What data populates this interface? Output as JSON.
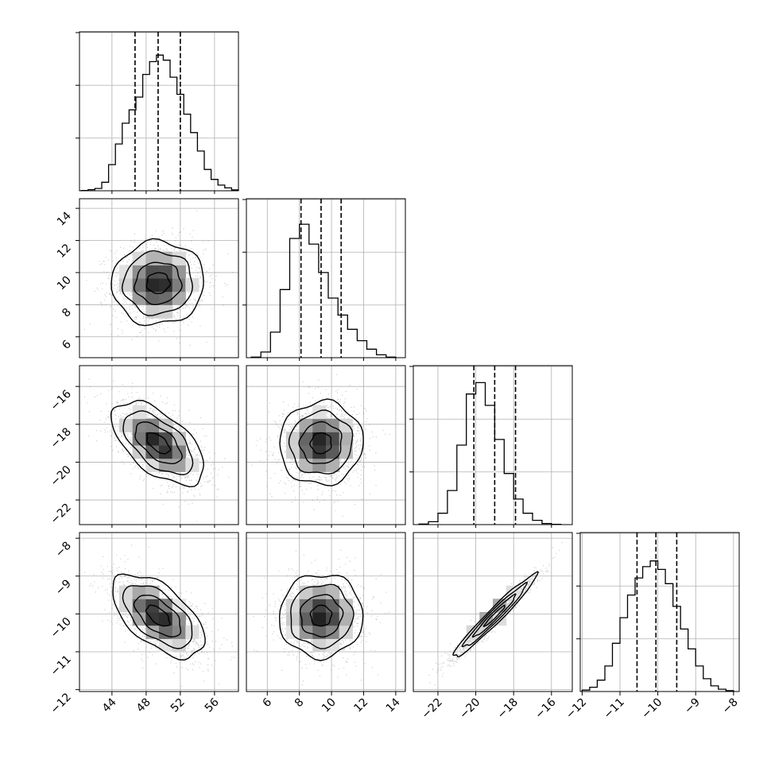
{
  "chart_data": {
    "type": "corner",
    "description_free": true,
    "n_params": 4,
    "params": [
      {
        "index": 0,
        "range": [
          40.2,
          58.8
        ],
        "ticks": [
          44,
          48,
          52,
          56
        ],
        "tick_labels": [
          "44",
          "48",
          "52",
          "56"
        ],
        "quantiles": [
          46.7,
          49.4,
          52.0
        ],
        "hist": {
          "bins": [
            40.4,
            41.2,
            42.0,
            42.8,
            43.6,
            44.4,
            45.2,
            46.0,
            46.8,
            47.6,
            48.4,
            49.2,
            50.0,
            50.8,
            51.6,
            52.4,
            53.2,
            54.0,
            54.8,
            55.6,
            56.4,
            57.2,
            58.0,
            58.8
          ],
          "counts": [
            1,
            4,
            8,
            30,
            92,
            165,
            238,
            285,
            330,
            410,
            455,
            478,
            460,
            400,
            340,
            270,
            205,
            140,
            75,
            40,
            20,
            10,
            3
          ],
          "max_scale": 560,
          "y_gridlines": [
            0.333,
            0.667,
            1.0
          ]
        }
      },
      {
        "index": 1,
        "range": [
          4.7,
          14.6
        ],
        "ticks": [
          6,
          8,
          10,
          12,
          14
        ],
        "tick_labels": [
          "6",
          "8",
          "10",
          "12",
          "14"
        ],
        "quantiles": [
          8.1,
          9.35,
          10.6
        ],
        "hist": {
          "bins": [
            5.0,
            5.6,
            6.2,
            6.8,
            7.4,
            8.0,
            8.6,
            9.2,
            9.8,
            10.4,
            11.0,
            11.6,
            12.2,
            12.8,
            13.4,
            14.0
          ],
          "counts": [
            2,
            20,
            90,
            240,
            420,
            470,
            400,
            300,
            210,
            150,
            100,
            60,
            30,
            10,
            2
          ],
          "max_scale": 560,
          "y_gridlines": [
            0.333,
            0.667,
            1.0
          ]
        }
      },
      {
        "index": 2,
        "range": [
          -23.3,
          -14.9
        ],
        "ticks": [
          -22,
          -20,
          -18,
          -16
        ],
        "tick_labels": [
          "−22",
          "−20",
          "−18",
          "−16"
        ],
        "quantiles": [
          -20.1,
          -19.0,
          -17.9
        ],
        "hist": {
          "bins": [
            -23.0,
            -22.5,
            -22.0,
            -21.5,
            -21.0,
            -20.5,
            -20.0,
            -19.5,
            -19.0,
            -18.5,
            -18.0,
            -17.5,
            -17.0,
            -16.5,
            -16.0,
            -15.5
          ],
          "counts": [
            2,
            10,
            40,
            120,
            280,
            460,
            500,
            420,
            300,
            180,
            90,
            40,
            15,
            4,
            1
          ],
          "max_scale": 560,
          "y_gridlines": [
            0.333,
            0.667,
            1.0
          ]
        }
      },
      {
        "index": 3,
        "range": [
          -12.05,
          -7.85
        ],
        "ticks": [
          -12,
          -11,
          -10,
          -9,
          -8
        ],
        "tick_labels": [
          "−12",
          "−11",
          "−10",
          "−9",
          "−8"
        ],
        "quantiles": [
          -10.55,
          -10.05,
          -9.5
        ],
        "hist": {
          "bins": [
            -12.0,
            -11.8,
            -11.6,
            -11.4,
            -11.2,
            -11.0,
            -10.8,
            -10.6,
            -10.4,
            -10.2,
            -10.0,
            -9.8,
            -9.6,
            -9.4,
            -9.2,
            -9.0,
            -8.8,
            -8.6,
            -8.4,
            -8.2,
            -8.0
          ],
          "counts": [
            5,
            15,
            40,
            90,
            170,
            260,
            340,
            400,
            440,
            460,
            430,
            380,
            300,
            220,
            150,
            90,
            45,
            20,
            8,
            3
          ],
          "max_scale": 560,
          "y_gridlines": [
            0.333,
            0.667,
            1.0
          ]
        }
      }
    ],
    "pairs": [
      {
        "x": 0,
        "y": 1,
        "center": [
          49.4,
          9.35
        ],
        "sd": [
          2.7,
          1.3
        ],
        "corr": 0.03
      },
      {
        "x": 0,
        "y": 2,
        "center": [
          49.4,
          -19.0
        ],
        "sd": [
          2.7,
          1.1
        ],
        "corr": -0.58
      },
      {
        "x": 1,
        "y": 2,
        "center": [
          9.35,
          -19.0
        ],
        "sd": [
          1.3,
          1.1
        ],
        "corr": 0.03
      },
      {
        "x": 0,
        "y": 3,
        "center": [
          49.4,
          -10.05
        ],
        "sd": [
          2.7,
          0.55
        ],
        "corr": -0.58
      },
      {
        "x": 1,
        "y": 3,
        "center": [
          9.35,
          -10.05
        ],
        "sd": [
          1.3,
          0.55
        ],
        "corr": 0.02
      },
      {
        "x": 2,
        "y": 3,
        "center": [
          -19.0,
          -10.05
        ],
        "sd": [
          1.1,
          0.55
        ],
        "corr": 0.97
      }
    ],
    "contour_levels_sigma": [
      0.5,
      1.0,
      1.5,
      2.0
    ],
    "grid": true,
    "colors": {
      "line": "#000000",
      "points": "#777777",
      "grid": "#b0b0b0"
    }
  }
}
